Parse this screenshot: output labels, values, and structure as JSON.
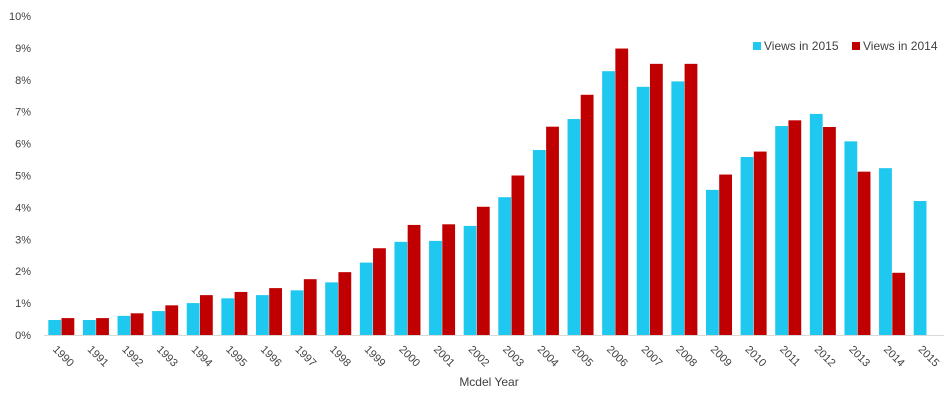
{
  "chart_data": {
    "type": "bar",
    "title": "",
    "xlabel": "Mcdel Year",
    "ylabel": "",
    "ylim": [
      0,
      10
    ],
    "y_ticks": [
      "0%",
      "1%",
      "2%",
      "3%",
      "4%",
      "5%",
      "6%",
      "7%",
      "8%",
      "9%",
      "10%"
    ],
    "grid": false,
    "legend_position": "top-right",
    "categories": [
      "1990",
      "1991",
      "1992",
      "1993",
      "1994",
      "1995",
      "1996",
      "1997",
      "1998",
      "1999",
      "2000",
      "2001",
      "2002",
      "2003",
      "2004",
      "2005",
      "2006",
      "2007",
      "2008",
      "2009",
      "2010",
      "2011",
      "2012",
      "2013",
      "2014",
      "2015"
    ],
    "series": [
      {
        "name": "Views in 2015",
        "color": "#1EC8EE",
        "values": [
          0.47,
          0.47,
          0.6,
          0.75,
          1.0,
          1.15,
          1.25,
          1.4,
          1.65,
          2.27,
          2.92,
          2.95,
          3.42,
          4.32,
          5.8,
          6.77,
          8.27,
          7.78,
          7.95,
          4.55,
          5.58,
          6.55,
          6.93,
          6.07,
          5.23,
          4.2
        ]
      },
      {
        "name": "Views in 2014",
        "color": "#C00000",
        "values": [
          0.53,
          0.53,
          0.68,
          0.93,
          1.25,
          1.35,
          1.47,
          1.75,
          1.97,
          2.72,
          3.45,
          3.47,
          4.02,
          5.0,
          6.53,
          7.53,
          8.98,
          8.5,
          8.5,
          5.03,
          5.75,
          6.73,
          6.52,
          5.12,
          1.95,
          null
        ]
      }
    ]
  }
}
